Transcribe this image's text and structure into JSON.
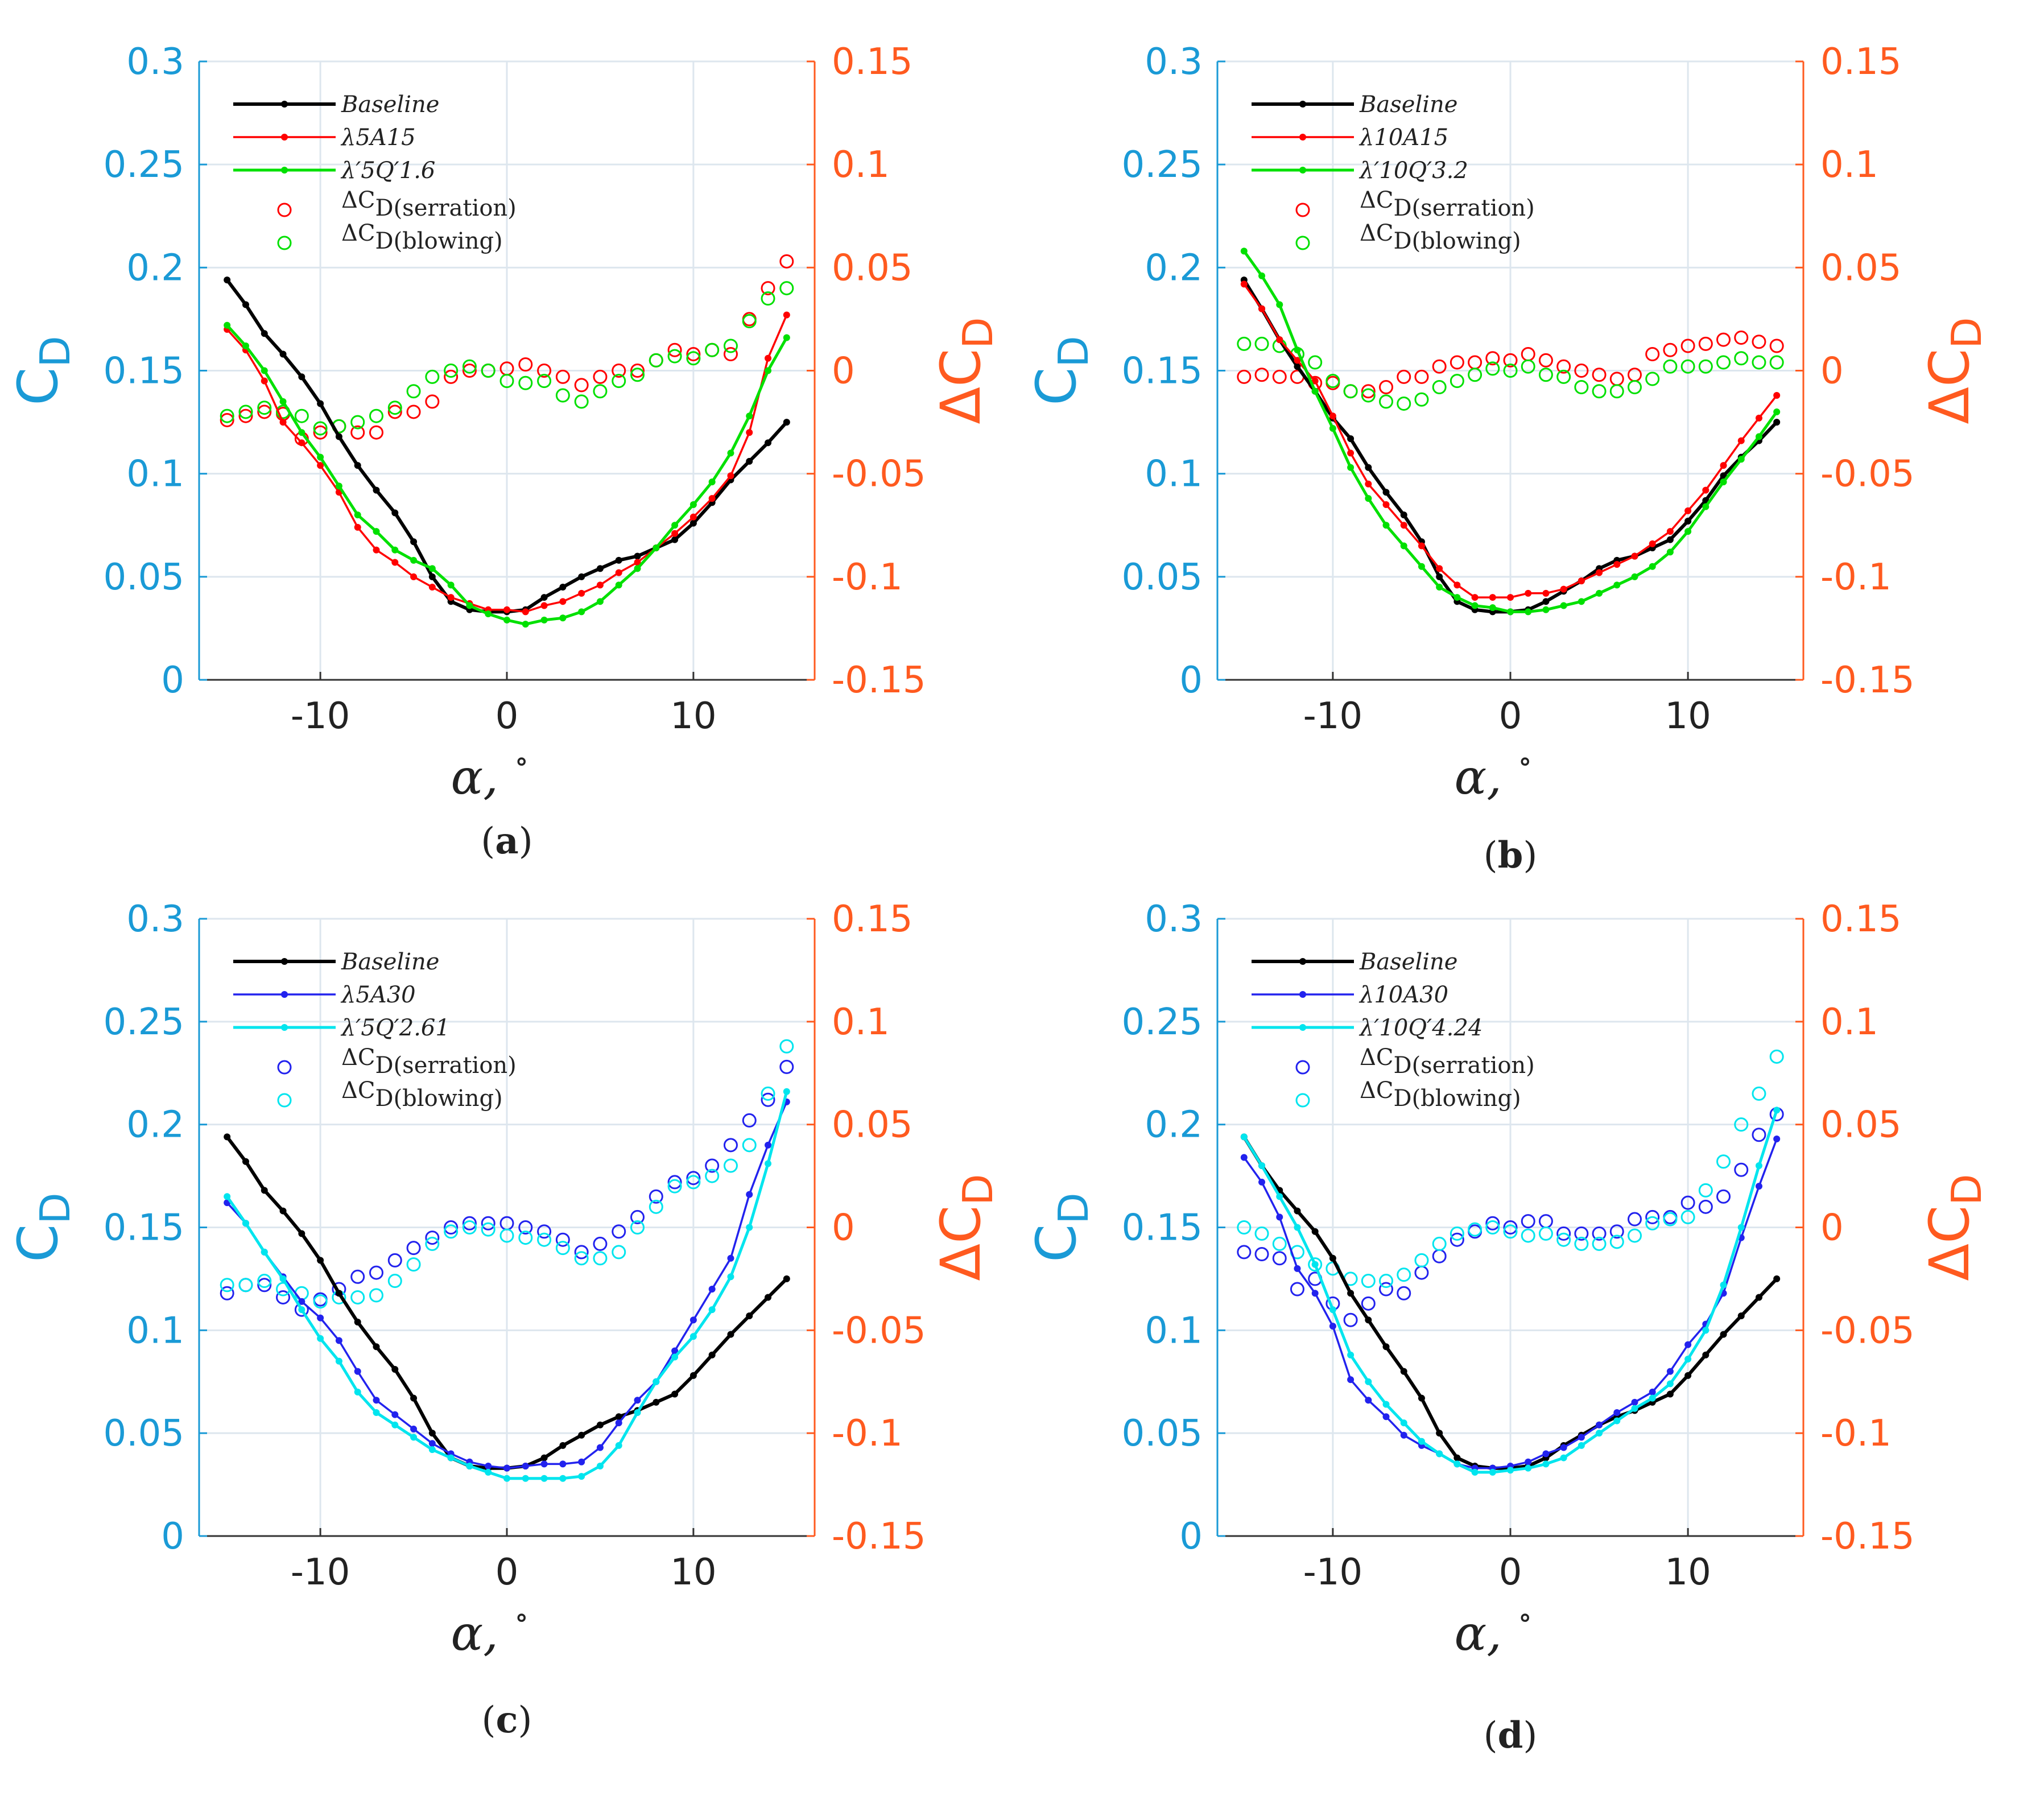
{
  "colors": {
    "left_axis": "#1a9ad6",
    "right_axis": "#ff5a1f",
    "baseline": "#000000",
    "red": "#ff0000",
    "green": "#00e000",
    "blue": "#2222ee",
    "cyan": "#00e5ee",
    "grid": "#dde6ee"
  },
  "common": {
    "ylabel_left_main": "C",
    "ylabel_left_sub": "D",
    "ylabel_right_main": "ΔC",
    "ylabel_right_sub": "D",
    "xlabel": "α,",
    "xlabel_unit": "∘",
    "x_ticks": [
      "-10",
      "0",
      "10"
    ],
    "left_ticks": [
      "0",
      "0.05",
      "0.1",
      "0.15",
      "0.2",
      "0.25",
      "0.3"
    ],
    "right_ticks": [
      "-0.15",
      "-0.1",
      "-0.05",
      "0",
      "0.05",
      "0.1",
      "0.15"
    ]
  },
  "chart_data": [
    {
      "panel": "a",
      "caption_letter": "a",
      "caption_open": "(",
      "caption_close": ")",
      "type": "line",
      "xlim": [
        -16.5,
        16.5
      ],
      "ylim_left": [
        0,
        0.3
      ],
      "ylim_right": [
        -0.15,
        0.15
      ],
      "x": [
        -15,
        -14,
        -13,
        -12,
        -11,
        -10,
        -9,
        -8,
        -7,
        -6,
        -5,
        -4,
        -3,
        -2,
        -1,
        0,
        1,
        2,
        3,
        4,
        5,
        6,
        7,
        8,
        9,
        10,
        11,
        12,
        13,
        14,
        15
      ],
      "legend": {
        "baseline": "Baseline",
        "mod1": "λ5A15",
        "mod2": "λ′5Q′1.6",
        "delta_main": "ΔC",
        "delta_sub1": "D(serration)",
        "delta_sub2": "D(blowing)"
      },
      "baseline": [
        0.194,
        0.182,
        0.168,
        0.158,
        0.147,
        0.134,
        0.118,
        0.104,
        0.092,
        0.081,
        0.067,
        0.05,
        0.038,
        0.034,
        0.033,
        0.033,
        0.034,
        0.04,
        0.045,
        0.05,
        0.054,
        0.058,
        0.06,
        0.064,
        0.068,
        0.076,
        0.086,
        0.097,
        0.106,
        0.115,
        0.125
      ],
      "mod1": [
        0.17,
        0.16,
        0.145,
        0.125,
        0.115,
        0.104,
        0.091,
        0.074,
        0.063,
        0.057,
        0.05,
        0.045,
        0.04,
        0.037,
        0.034,
        0.034,
        0.033,
        0.036,
        0.038,
        0.042,
        0.046,
        0.052,
        0.057,
        0.064,
        0.071,
        0.079,
        0.088,
        0.099,
        0.12,
        0.156,
        0.177
      ],
      "mod2": [
        0.172,
        0.162,
        0.15,
        0.135,
        0.12,
        0.108,
        0.094,
        0.08,
        0.072,
        0.063,
        0.058,
        0.054,
        0.046,
        0.036,
        0.032,
        0.029,
        0.027,
        0.029,
        0.03,
        0.033,
        0.038,
        0.046,
        0.054,
        0.064,
        0.075,
        0.085,
        0.096,
        0.11,
        0.128,
        0.15,
        0.166
      ],
      "delta1": [
        -0.024,
        -0.022,
        -0.02,
        -0.021,
        -0.033,
        -0.03,
        -0.027,
        -0.03,
        -0.03,
        -0.02,
        -0.02,
        -0.015,
        -0.003,
        0.0,
        0.0,
        0.001,
        0.003,
        0.0,
        -0.003,
        -0.007,
        -0.003,
        0.0,
        0.0,
        0.005,
        0.01,
        0.008,
        0.01,
        0.008,
        0.025,
        0.04,
        0.053
      ],
      "delta2": [
        -0.022,
        -0.02,
        -0.018,
        -0.02,
        -0.022,
        -0.028,
        -0.027,
        -0.025,
        -0.022,
        -0.018,
        -0.01,
        -0.003,
        0.0,
        0.002,
        0.0,
        -0.005,
        -0.006,
        -0.005,
        -0.012,
        -0.015,
        -0.01,
        -0.005,
        -0.002,
        0.005,
        0.007,
        0.006,
        0.01,
        0.012,
        0.024,
        0.035,
        0.04
      ]
    },
    {
      "panel": "b",
      "caption_letter": "b",
      "caption_open": "(",
      "caption_close": ")",
      "type": "line",
      "xlim": [
        -16.5,
        16.5
      ],
      "ylim_left": [
        0,
        0.3
      ],
      "ylim_right": [
        -0.15,
        0.15
      ],
      "x": [
        -15,
        -14,
        -13,
        -12,
        -11,
        -10,
        -9,
        -8,
        -7,
        -6,
        -5,
        -4,
        -3,
        -2,
        -1,
        0,
        1,
        2,
        3,
        4,
        5,
        6,
        7,
        8,
        9,
        10,
        11,
        12,
        13,
        14,
        15
      ],
      "legend": {
        "baseline": "Baseline",
        "mod1": "λ10A15",
        "mod2": "λ′10Q′3.2",
        "delta_main": "ΔC",
        "delta_sub1": "D(serration)",
        "delta_sub2": "D(blowing)"
      },
      "baseline": [
        0.194,
        0.18,
        0.165,
        0.152,
        0.14,
        0.127,
        0.117,
        0.103,
        0.091,
        0.08,
        0.067,
        0.05,
        0.038,
        0.034,
        0.033,
        0.033,
        0.034,
        0.038,
        0.043,
        0.048,
        0.054,
        0.058,
        0.06,
        0.064,
        0.068,
        0.077,
        0.087,
        0.099,
        0.108,
        0.116,
        0.125
      ],
      "mod1": [
        0.192,
        0.18,
        0.165,
        0.155,
        0.145,
        0.128,
        0.11,
        0.095,
        0.085,
        0.075,
        0.065,
        0.054,
        0.046,
        0.04,
        0.04,
        0.04,
        0.042,
        0.042,
        0.044,
        0.048,
        0.052,
        0.056,
        0.06,
        0.066,
        0.072,
        0.082,
        0.092,
        0.104,
        0.116,
        0.127,
        0.138
      ],
      "mod2": [
        0.208,
        0.196,
        0.182,
        0.16,
        0.14,
        0.122,
        0.103,
        0.088,
        0.075,
        0.065,
        0.055,
        0.045,
        0.04,
        0.036,
        0.035,
        0.033,
        0.033,
        0.034,
        0.036,
        0.038,
        0.042,
        0.046,
        0.05,
        0.055,
        0.062,
        0.072,
        0.084,
        0.096,
        0.107,
        0.118,
        0.13
      ],
      "delta1": [
        -0.003,
        -0.002,
        -0.003,
        -0.003,
        -0.006,
        -0.006,
        -0.01,
        -0.01,
        -0.008,
        -0.003,
        -0.003,
        0.002,
        0.004,
        0.004,
        0.006,
        0.005,
        0.008,
        0.005,
        0.002,
        0.0,
        -0.002,
        -0.004,
        -0.002,
        0.008,
        0.01,
        0.012,
        0.013,
        0.015,
        0.016,
        0.014,
        0.012
      ],
      "delta2": [
        0.013,
        0.013,
        0.012,
        0.008,
        0.004,
        -0.005,
        -0.01,
        -0.012,
        -0.015,
        -0.016,
        -0.014,
        -0.008,
        -0.005,
        -0.002,
        0.001,
        0.0,
        0.002,
        -0.002,
        -0.003,
        -0.008,
        -0.01,
        -0.01,
        -0.008,
        -0.004,
        0.002,
        0.002,
        0.002,
        0.004,
        0.006,
        0.004,
        0.004
      ]
    },
    {
      "panel": "c",
      "caption_letter": "c",
      "caption_open": "(",
      "caption_close": ")",
      "type": "line",
      "xlim": [
        -16.5,
        16.5
      ],
      "ylim_left": [
        0,
        0.3
      ],
      "ylim_right": [
        -0.15,
        0.15
      ],
      "x": [
        -15,
        -14,
        -13,
        -12,
        -11,
        -10,
        -9,
        -8,
        -7,
        -6,
        -5,
        -4,
        -3,
        -2,
        -1,
        0,
        1,
        2,
        3,
        4,
        5,
        6,
        7,
        8,
        9,
        10,
        11,
        12,
        13,
        14,
        15
      ],
      "legend": {
        "baseline": "Baseline",
        "mod1": "λ5A30",
        "mod2": "λ′5Q′2.61",
        "delta_main": "ΔC",
        "delta_sub1": "D(serration)",
        "delta_sub2": "D(blowing)"
      },
      "baseline": [
        0.194,
        0.182,
        0.168,
        0.158,
        0.147,
        0.134,
        0.118,
        0.104,
        0.092,
        0.081,
        0.067,
        0.05,
        0.038,
        0.034,
        0.033,
        0.033,
        0.034,
        0.038,
        0.044,
        0.049,
        0.054,
        0.058,
        0.061,
        0.065,
        0.069,
        0.078,
        0.088,
        0.098,
        0.107,
        0.116,
        0.125
      ],
      "mod1": [
        0.162,
        0.152,
        0.138,
        0.126,
        0.114,
        0.106,
        0.095,
        0.08,
        0.066,
        0.059,
        0.052,
        0.045,
        0.04,
        0.036,
        0.034,
        0.033,
        0.034,
        0.035,
        0.035,
        0.036,
        0.043,
        0.055,
        0.066,
        0.075,
        0.09,
        0.105,
        0.12,
        0.135,
        0.166,
        0.19,
        0.211
      ],
      "mod2": [
        0.165,
        0.152,
        0.138,
        0.125,
        0.11,
        0.096,
        0.085,
        0.07,
        0.06,
        0.054,
        0.048,
        0.042,
        0.038,
        0.034,
        0.031,
        0.028,
        0.028,
        0.028,
        0.028,
        0.029,
        0.034,
        0.044,
        0.06,
        0.075,
        0.087,
        0.097,
        0.11,
        0.126,
        0.15,
        0.181,
        0.216
      ],
      "delta1": [
        -0.032,
        -0.028,
        -0.028,
        -0.034,
        -0.04,
        -0.035,
        -0.03,
        -0.024,
        -0.022,
        -0.016,
        -0.01,
        -0.005,
        0.0,
        0.002,
        0.002,
        0.002,
        0.0,
        -0.002,
        -0.006,
        -0.012,
        -0.008,
        -0.002,
        0.005,
        0.015,
        0.022,
        0.024,
        0.03,
        0.04,
        0.052,
        0.062,
        0.078
      ],
      "delta2": [
        -0.028,
        -0.028,
        -0.026,
        -0.03,
        -0.032,
        -0.036,
        -0.034,
        -0.034,
        -0.033,
        -0.026,
        -0.018,
        -0.008,
        -0.002,
        0.0,
        -0.001,
        -0.004,
        -0.005,
        -0.006,
        -0.01,
        -0.015,
        -0.015,
        -0.012,
        0.0,
        0.01,
        0.02,
        0.022,
        0.025,
        0.03,
        0.04,
        0.065,
        0.088
      ]
    },
    {
      "panel": "d",
      "caption_letter": "d",
      "caption_open": "(",
      "caption_close": ")",
      "type": "line",
      "xlim": [
        -16.5,
        16.5
      ],
      "ylim_left": [
        0,
        0.3
      ],
      "ylim_right": [
        -0.15,
        0.15
      ],
      "x": [
        -15,
        -14,
        -13,
        -12,
        -11,
        -10,
        -9,
        -8,
        -7,
        -6,
        -5,
        -4,
        -3,
        -2,
        -1,
        0,
        1,
        2,
        3,
        4,
        5,
        6,
        7,
        8,
        9,
        10,
        11,
        12,
        13,
        14,
        15
      ],
      "legend": {
        "baseline": "Baseline",
        "mod1": "λ10A30",
        "mod2": "λ′10Q′4.24",
        "delta_main": "ΔC",
        "delta_sub1": "D(serration)",
        "delta_sub2": "D(blowing)"
      },
      "baseline": [
        0.194,
        0.18,
        0.168,
        0.158,
        0.148,
        0.135,
        0.118,
        0.105,
        0.092,
        0.08,
        0.067,
        0.05,
        0.038,
        0.034,
        0.033,
        0.033,
        0.034,
        0.038,
        0.044,
        0.049,
        0.054,
        0.058,
        0.061,
        0.065,
        0.069,
        0.078,
        0.088,
        0.098,
        0.107,
        0.116,
        0.125
      ],
      "mod1": [
        0.184,
        0.172,
        0.155,
        0.13,
        0.118,
        0.102,
        0.076,
        0.066,
        0.058,
        0.049,
        0.044,
        0.04,
        0.035,
        0.033,
        0.033,
        0.034,
        0.036,
        0.04,
        0.043,
        0.048,
        0.054,
        0.06,
        0.065,
        0.07,
        0.08,
        0.093,
        0.103,
        0.118,
        0.145,
        0.17,
        0.193
      ],
      "mod2": [
        0.194,
        0.18,
        0.165,
        0.15,
        0.132,
        0.11,
        0.088,
        0.075,
        0.064,
        0.055,
        0.046,
        0.04,
        0.035,
        0.031,
        0.031,
        0.032,
        0.033,
        0.035,
        0.038,
        0.044,
        0.05,
        0.056,
        0.062,
        0.067,
        0.074,
        0.086,
        0.1,
        0.122,
        0.15,
        0.18,
        0.207
      ],
      "delta1": [
        -0.012,
        -0.013,
        -0.015,
        -0.03,
        -0.025,
        -0.037,
        -0.045,
        -0.037,
        -0.03,
        -0.032,
        -0.022,
        -0.014,
        -0.006,
        -0.002,
        0.002,
        0.0,
        0.003,
        0.003,
        -0.003,
        -0.003,
        -0.003,
        -0.002,
        0.004,
        0.005,
        0.005,
        0.012,
        0.01,
        0.015,
        0.028,
        0.045,
        0.055
      ],
      "delta2": [
        0.0,
        -0.003,
        -0.008,
        -0.012,
        -0.018,
        -0.02,
        -0.025,
        -0.026,
        -0.026,
        -0.023,
        -0.016,
        -0.008,
        -0.003,
        -0.001,
        0.0,
        -0.002,
        -0.004,
        -0.003,
        -0.006,
        -0.008,
        -0.008,
        -0.007,
        -0.004,
        0.002,
        0.004,
        0.005,
        0.018,
        0.032,
        0.05,
        0.065,
        0.083
      ]
    }
  ]
}
